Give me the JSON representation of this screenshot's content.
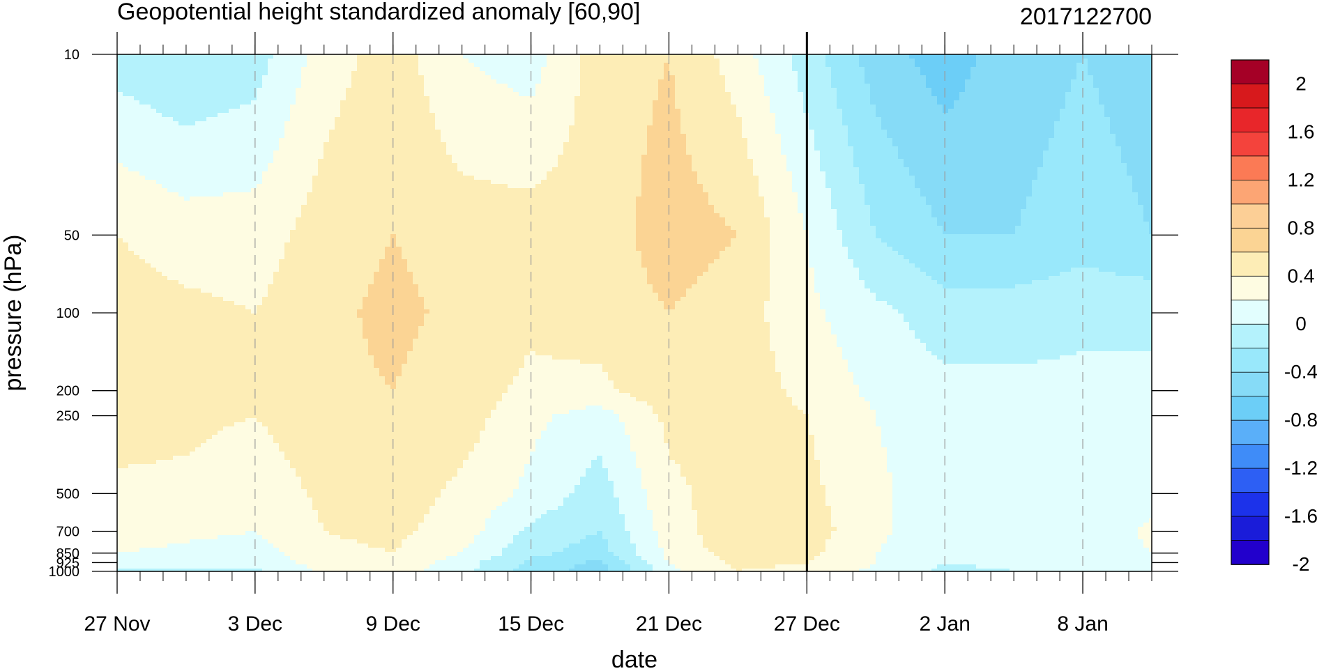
{
  "chart_data": {
    "type": "heatmap",
    "subtype": "filled-contour",
    "title": "Geopotential height standardized anomaly [60,90]",
    "date_label": "2017122700",
    "xlabel": "date",
    "ylabel": "pressure (hPa)",
    "x_tick_labels": [
      "27 Nov",
      "3 Dec",
      "9 Dec",
      "15 Dec",
      "21 Dec",
      "27 Dec",
      "2 Jan",
      "8 Jan"
    ],
    "x_tick_days": [
      0,
      6,
      12,
      18,
      24,
      30,
      36,
      42
    ],
    "x_range_days": [
      0,
      45
    ],
    "y_levels_hPa": [
      10,
      50,
      100,
      200,
      250,
      500,
      700,
      850,
      925,
      1000
    ],
    "y_tick_labels": [
      "10",
      "50",
      "100",
      "200",
      "250",
      "500",
      "700",
      "850",
      "925",
      "1000"
    ],
    "y_scale": "log",
    "y_range_hPa": [
      1000,
      10
    ],
    "current_date_marker_day": 30,
    "colorbar": {
      "tick_labels": [
        "2",
        "1.6",
        "1.2",
        "0.8",
        "0.4",
        "0",
        "-0.4",
        "-0.8",
        "-1.2",
        "-1.6",
        "-2"
      ],
      "colors": [
        "#a50026",
        "#d7191c",
        "#e8262a",
        "#f4433c",
        "#fb7a55",
        "#fca574",
        "#fccf96",
        "#fbd494",
        "#fdedb6",
        "#fefce2",
        "#e2fefe",
        "#b4f2fc",
        "#99e8fb",
        "#86dbf7",
        "#6ccef7",
        "#5aaff9",
        "#3f8cf8",
        "#2d5ff4",
        "#1c32ea",
        "#1a1cd9",
        "#2200cc"
      ]
    },
    "anomaly_grid": {
      "days": [
        0,
        3,
        6,
        9,
        12,
        15,
        18,
        21,
        24,
        27,
        30,
        33,
        36,
        39,
        42,
        45
      ],
      "levels_hPa": [
        10,
        50,
        100,
        200,
        250,
        500,
        700,
        850,
        925,
        1000
      ],
      "values": [
        [
          -0.1,
          -0.2,
          -0.1,
          0.3,
          0.5,
          0.2,
          0.1,
          0.5,
          0.6,
          0.3,
          -0.1,
          -0.5,
          -0.7,
          -0.5,
          -0.4,
          -0.5
        ],
        [
          0.4,
          0.3,
          0.3,
          0.5,
          0.6,
          0.5,
          0.5,
          0.5,
          0.7,
          0.6,
          0.2,
          -0.2,
          -0.4,
          -0.4,
          -0.3,
          -0.4
        ],
        [
          0.5,
          0.45,
          0.4,
          0.55,
          0.65,
          0.55,
          0.45,
          0.5,
          0.6,
          0.5,
          0.25,
          0.05,
          -0.1,
          -0.1,
          -0.05,
          -0.05
        ],
        [
          0.55,
          0.45,
          0.45,
          0.55,
          0.6,
          0.5,
          0.35,
          0.35,
          0.55,
          0.5,
          0.35,
          0.15,
          0.05,
          0.05,
          0.05,
          0.05
        ],
        [
          0.5,
          0.45,
          0.4,
          0.55,
          0.55,
          0.5,
          0.25,
          0.1,
          0.45,
          0.5,
          0.4,
          0.2,
          0.05,
          0.05,
          0.05,
          0.05
        ],
        [
          0.35,
          0.35,
          0.25,
          0.45,
          0.5,
          0.35,
          0.15,
          -0.1,
          0.35,
          0.5,
          0.45,
          0.25,
          0.05,
          0.05,
          0.05,
          0.1
        ],
        [
          0.3,
          0.25,
          0.2,
          0.4,
          0.45,
          0.3,
          -0.05,
          -0.2,
          0.3,
          0.55,
          0.5,
          0.25,
          0.05,
          0.05,
          0.05,
          0.25
        ],
        [
          0.2,
          0.15,
          0.1,
          0.35,
          0.4,
          0.2,
          -0.15,
          -0.3,
          0.25,
          0.5,
          0.45,
          0.2,
          0.05,
          0.05,
          0.05,
          0.2
        ],
        [
          0.05,
          0.05,
          0.05,
          0.3,
          0.35,
          0.1,
          -0.25,
          -0.45,
          0.2,
          0.45,
          0.4,
          0.2,
          0.0,
          0.05,
          0.05,
          0.1
        ],
        [
          -0.05,
          -0.05,
          -0.05,
          0.25,
          0.3,
          0.05,
          -0.3,
          -0.5,
          0.15,
          0.4,
          0.35,
          0.15,
          -0.05,
          0.0,
          0.05,
          0.05
        ]
      ]
    }
  }
}
